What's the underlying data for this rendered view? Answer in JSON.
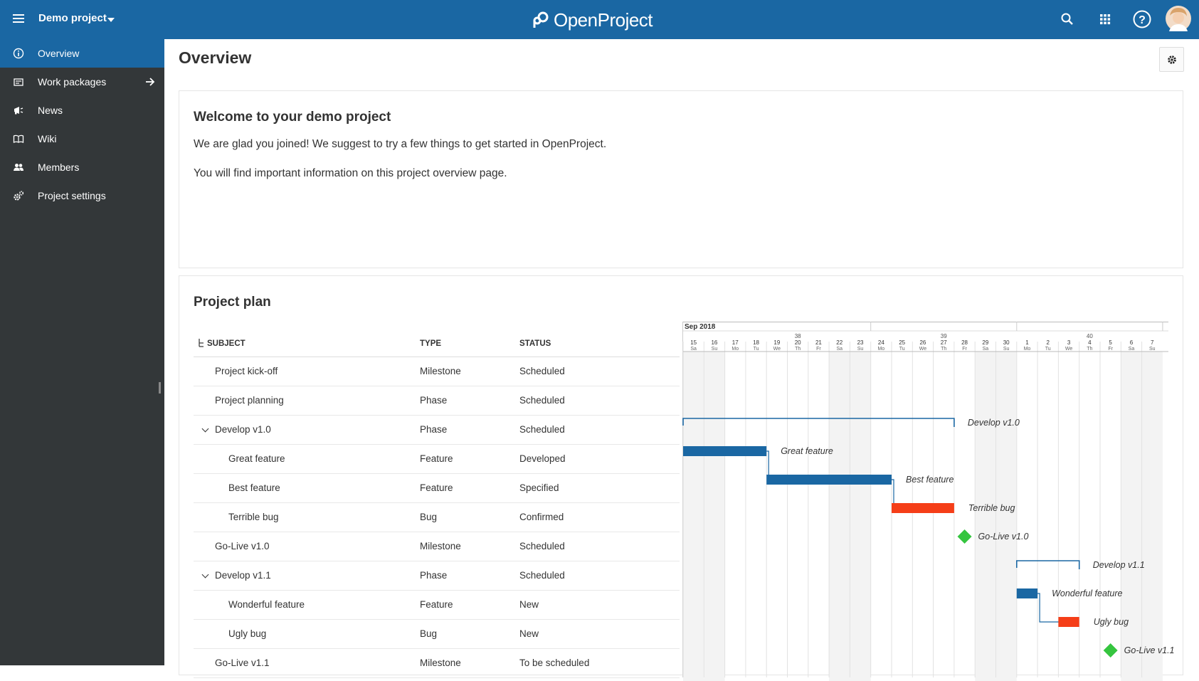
{
  "header": {
    "project_name": "Demo project",
    "app_name": "OpenProject",
    "colors": {
      "header": "#1a67a3",
      "sidebar": "#333739",
      "bar_blue": "#1a67a3",
      "bar_red": "#f53e18",
      "milestone": "#35c53f"
    }
  },
  "sidebar": {
    "items": [
      {
        "label": "Overview",
        "icon": "info-icon"
      },
      {
        "label": "Work packages",
        "icon": "work-packages-icon"
      },
      {
        "label": "News",
        "icon": "megaphone-icon"
      },
      {
        "label": "Wiki",
        "icon": "book-icon"
      },
      {
        "label": "Members",
        "icon": "members-icon"
      },
      {
        "label": "Project settings",
        "icon": "settings-icon"
      }
    ]
  },
  "main": {
    "title": "Overview",
    "welcome": {
      "title": "Welcome to your demo project",
      "line1": "We are glad you joined! We suggest to try a few things to get started in OpenProject.",
      "line2": "You will find important information on this project overview page."
    },
    "plan": {
      "title": "Project plan",
      "columns": {
        "subject": "SUBJECT",
        "type": "TYPE",
        "status": "STATUS"
      },
      "rows": [
        {
          "subject": "Project kick-off",
          "type": "Milestone",
          "status": "Scheduled"
        },
        {
          "subject": "Project planning",
          "type": "Phase",
          "status": "Scheduled"
        },
        {
          "subject": "Develop v1.0",
          "type": "Phase",
          "status": "Scheduled"
        },
        {
          "subject": "Great feature",
          "type": "Feature",
          "status": "Developed"
        },
        {
          "subject": "Best feature",
          "type": "Feature",
          "status": "Specified"
        },
        {
          "subject": "Terrible bug",
          "type": "Bug",
          "status": "Confirmed"
        },
        {
          "subject": "Go-Live v1.0",
          "type": "Milestone",
          "status": "Scheduled"
        },
        {
          "subject": "Develop v1.1",
          "type": "Phase",
          "status": "Scheduled"
        },
        {
          "subject": "Wonderful feature",
          "type": "Feature",
          "status": "New"
        },
        {
          "subject": "Ugly bug",
          "type": "Bug",
          "status": "New"
        },
        {
          "subject": "Go-Live v1.1",
          "type": "Milestone",
          "status": "To be scheduled"
        }
      ]
    },
    "gantt": {
      "month": "Sep 2018",
      "weeks": [
        {
          "label": "38",
          "from": 2,
          "to": 9
        },
        {
          "label": "39",
          "from": 9,
          "to": 16
        },
        {
          "label": "40",
          "from": 16,
          "to": 23
        }
      ],
      "days": [
        {
          "d": "15",
          "w": "Sa"
        },
        {
          "d": "16",
          "w": "Su"
        },
        {
          "d": "17",
          "w": "Mo"
        },
        {
          "d": "18",
          "w": "Tu"
        },
        {
          "d": "19",
          "w": "We"
        },
        {
          "d": "20",
          "w": "Th"
        },
        {
          "d": "21",
          "w": "Fr"
        },
        {
          "d": "22",
          "w": "Sa"
        },
        {
          "d": "23",
          "w": "Su"
        },
        {
          "d": "24",
          "w": "Mo"
        },
        {
          "d": "25",
          "w": "Tu"
        },
        {
          "d": "26",
          "w": "We"
        },
        {
          "d": "27",
          "w": "Th"
        },
        {
          "d": "28",
          "w": "Fr"
        },
        {
          "d": "29",
          "w": "Sa"
        },
        {
          "d": "30",
          "w": "Su"
        },
        {
          "d": "1",
          "w": "Mo"
        },
        {
          "d": "2",
          "w": "Tu"
        },
        {
          "d": "3",
          "w": "We"
        },
        {
          "d": "4",
          "w": "Th"
        },
        {
          "d": "5",
          "w": "Fr"
        },
        {
          "d": "6",
          "w": "Sa"
        },
        {
          "d": "7",
          "w": "Su"
        }
      ],
      "items": [
        {
          "row": 2,
          "kind": "phase",
          "start": 0,
          "end": 13,
          "label": "Develop v1.0"
        },
        {
          "row": 3,
          "kind": "bar",
          "color": "blue",
          "start": 0,
          "end": 4,
          "label": "Great feature"
        },
        {
          "row": 4,
          "kind": "bar",
          "color": "blue",
          "start": 4,
          "end": 10,
          "label": "Best feature"
        },
        {
          "row": 5,
          "kind": "bar",
          "color": "red",
          "start": 10,
          "end": 13,
          "label": "Terrible bug"
        },
        {
          "row": 6,
          "kind": "milestone",
          "start": 13.5,
          "label": "Go-Live v1.0"
        },
        {
          "row": 7,
          "kind": "phase",
          "start": 16,
          "end": 19,
          "label": "Develop v1.1"
        },
        {
          "row": 8,
          "kind": "bar",
          "color": "blue",
          "start": 16,
          "end": 17,
          "label": "Wonderful feature"
        },
        {
          "row": 9,
          "kind": "bar",
          "color": "red",
          "start": 18,
          "end": 19,
          "label": "Ugly bug"
        },
        {
          "row": 10,
          "kind": "milestone",
          "start": 20.5,
          "label": "Go-Live v1.1"
        }
      ],
      "links": [
        [
          3,
          4
        ],
        [
          4,
          5
        ],
        [
          8,
          9
        ]
      ]
    }
  }
}
